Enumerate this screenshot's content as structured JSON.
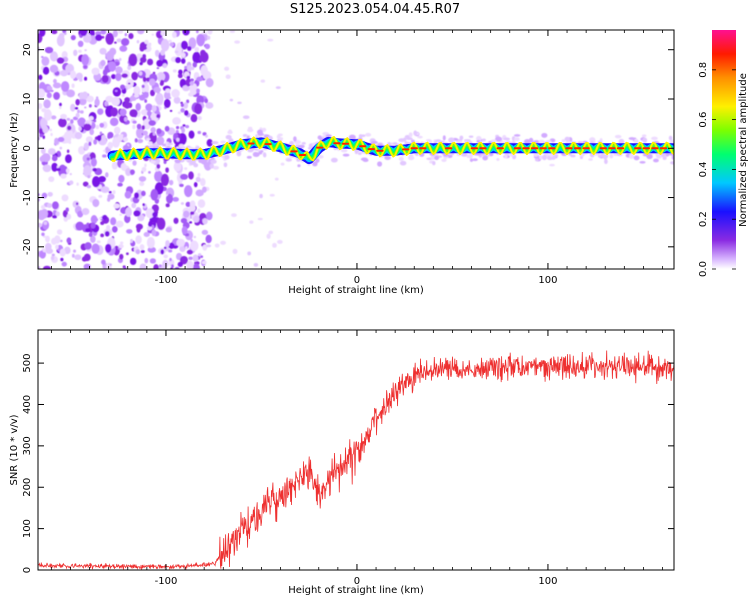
{
  "title": "S125.2023.054.04.45.R07",
  "chart_data": [
    {
      "type": "heatmap",
      "xlabel": "Height of straight line (km)",
      "ylabel": "Frequency (Hz)",
      "xlim": [
        -167,
        166
      ],
      "ylim": [
        -24.5,
        24
      ],
      "xticks": [
        -100,
        0,
        100
      ],
      "yticks": [
        -20,
        -10,
        0,
        10,
        20
      ],
      "colorbar": {
        "label": "Normalized spectral amplitude",
        "range": [
          0.0,
          0.96
        ],
        "ticks": [
          0.0,
          0.2,
          0.4,
          0.6,
          0.8
        ],
        "colormap": "rainbow"
      },
      "ridge": {
        "x": [
          -128,
          -110,
          -100,
          -90,
          -80,
          -70,
          -60,
          -50,
          -40,
          -30,
          -25,
          -20,
          -15,
          -10,
          0,
          10,
          20,
          30,
          40,
          60,
          80,
          100,
          120,
          140,
          160,
          166
        ],
        "y": [
          -1.5,
          -1.0,
          -1.0,
          -1.2,
          -1.2,
          -0.3,
          0.8,
          1.2,
          0.2,
          -1.0,
          -2.2,
          0.0,
          1.3,
          1.0,
          0.8,
          -0.5,
          -0.5,
          0.0,
          0.0,
          0.0,
          0.0,
          0.0,
          0.0,
          0.0,
          0.0,
          0.0
        ]
      }
    },
    {
      "type": "line",
      "xlabel": "Height of straight line (km)",
      "ylabel": "SNR (10 * v/v)",
      "xlim": [
        -167,
        166
      ],
      "ylim": [
        0,
        580
      ],
      "xticks": [
        -100,
        0,
        100
      ],
      "yticks": [
        0,
        100,
        200,
        300,
        400,
        500
      ],
      "color": "#ee3030",
      "series": [
        {
          "x": [
            -167,
            -150,
            -130,
            -110,
            -90,
            -75,
            -70,
            -65,
            -60,
            -55,
            -50,
            -45,
            -40,
            -35,
            -30,
            -28,
            -25,
            -20,
            -15,
            -10,
            -5,
            0,
            5,
            10,
            15,
            20,
            25,
            30,
            40,
            50,
            60,
            80,
            100,
            120,
            140,
            160,
            166
          ],
          "values": [
            12,
            10,
            9,
            8,
            9,
            14,
            40,
            65,
            95,
            115,
            145,
            165,
            175,
            195,
            215,
            225,
            235,
            185,
            210,
            240,
            265,
            285,
            320,
            360,
            400,
            440,
            455,
            470,
            480,
            490,
            485,
            492,
            490,
            493,
            492,
            490,
            492
          ]
        }
      ]
    }
  ]
}
